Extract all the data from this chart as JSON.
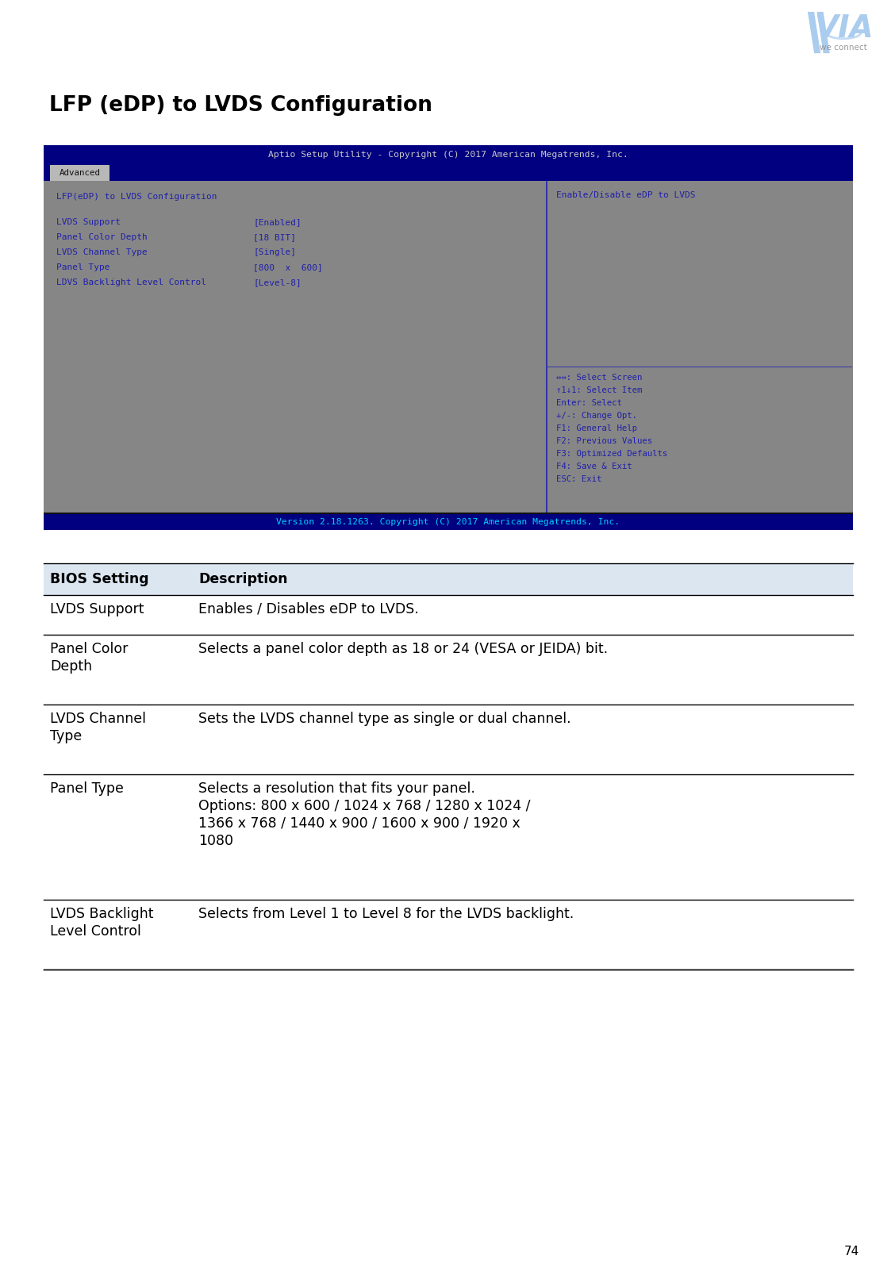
{
  "page_title": "LFP (eDP) to LVDS Configuration",
  "page_number": "74",
  "bios_header": "Aptio Setup Utility - Copyright (C) 2017 American Megatrends, Inc.",
  "bios_tab": "Advanced",
  "bios_main_title": "LFP(eDP) to LVDS Configuration",
  "bios_settings": [
    {
      "label": "LVDS Support",
      "value": "[Enabled]"
    },
    {
      "label": "Panel Color Depth",
      "value": "[18 BIT]"
    },
    {
      "label": "LVDS Channel Type",
      "value": "[Single]"
    },
    {
      "label": "Panel Type",
      "value": "[800  x  600]"
    },
    {
      "label": "LDVS Backlight Level Control",
      "value": "[Level-8]"
    }
  ],
  "bios_right_top": "Enable/Disable eDP to LVDS",
  "bios_right_bottom": [
    "⇔⇔: Select Screen",
    "↑1↓1: Select Item",
    "Enter: Select",
    "+/-: Change Opt.",
    "F1: General Help",
    "F2: Previous Values",
    "F3: Optimized Defaults",
    "F4: Save & Exit",
    "ESC: Exit"
  ],
  "bios_footer": "Version 2.18.1263. Copyright (C) 2017 American Megatrends, Inc.",
  "table_header": [
    "BIOS Setting",
    "Description"
  ],
  "table_rows": [
    {
      "setting": "LVDS Support",
      "description": "Enables / Disables eDP to LVDS.",
      "setting_lines": [
        "LVDS Support"
      ],
      "desc_lines": [
        "Enables / Disables eDP to LVDS."
      ]
    },
    {
      "setting": "Panel Color\nDepth",
      "description": "Selects a panel color depth as 18 or 24 (VESA or JEIDA) bit.",
      "setting_lines": [
        "Panel Color",
        "Depth"
      ],
      "desc_lines": [
        "Selects a panel color depth as 18 or 24 (VESA or JEIDA) bit."
      ]
    },
    {
      "setting": "LVDS Channel\nType",
      "description": "Sets the LVDS channel type as single or dual channel.",
      "setting_lines": [
        "LVDS Channel",
        "Type"
      ],
      "desc_lines": [
        "Sets the LVDS channel type as single or dual channel."
      ]
    },
    {
      "setting": "Panel Type",
      "description": "Selects a resolution that fits your panel.\nOptions: 800 x 600 / 1024 x 768 / 1280 x 1024 /\n1366 x 768 / 1440 x 900 / 1600 x 900 / 1920 x\n1080",
      "setting_lines": [
        "Panel Type"
      ],
      "desc_lines": [
        "Selects a resolution that fits your panel.",
        "Options: 800 x 600 / 1024 x 768 / 1280 x 1024 /",
        "1366 x 768 / 1440 x 900 / 1600 x 900 / 1920 x",
        "1080"
      ]
    },
    {
      "setting": "LVDS Backlight\nLevel Control",
      "description": "Selects from Level 1 to Level 8 for the LVDS backlight.",
      "setting_lines": [
        "LVDS Backlight",
        "Level Control"
      ],
      "desc_lines": [
        "Selects from Level 1 to Level 8 for the LVDS backlight."
      ]
    }
  ],
  "bg_color": "#ffffff",
  "bios_bg": "#808080",
  "bios_header_bg": "#000080",
  "bios_tab_bg": "#c0c0c0",
  "bios_text_color": "#2020aa",
  "bios_footer_text": "#00cfff",
  "table_header_bg": "#dce6f1",
  "title_color": "#000000",
  "logo_color": "#aaccee",
  "logo_text_color": "#999999"
}
